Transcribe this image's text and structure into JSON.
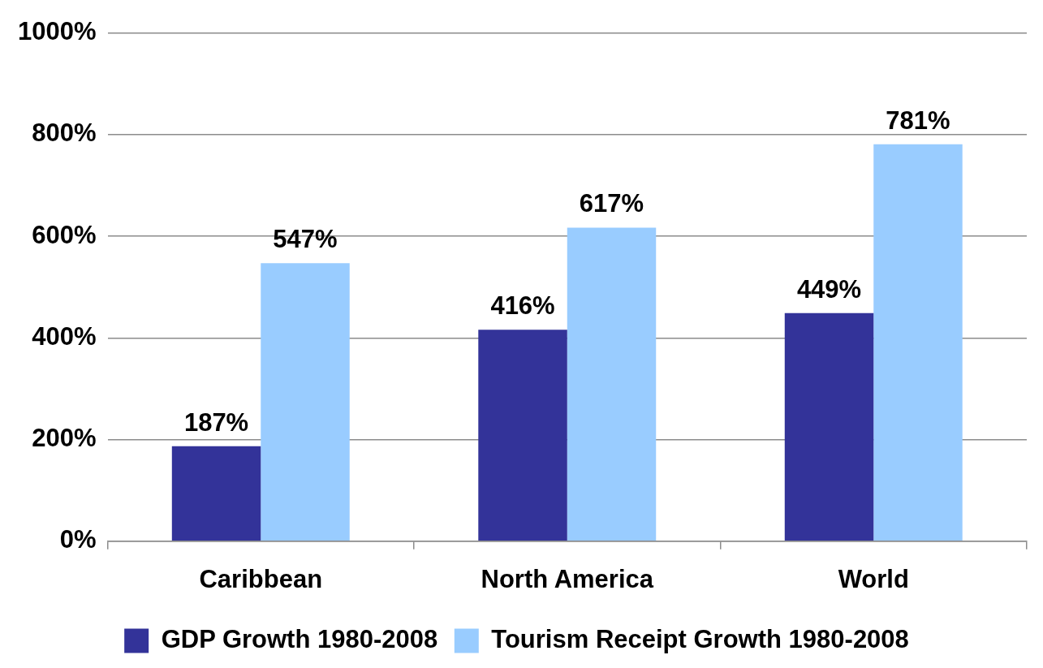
{
  "chart_data": {
    "type": "bar",
    "categories": [
      "Caribbean",
      "North America",
      "World"
    ],
    "series": [
      {
        "name": "GDP Growth 1980-2008",
        "color": "#333399",
        "values": [
          187,
          416,
          449
        ],
        "value_labels": [
          "187%",
          "416%",
          "449%"
        ]
      },
      {
        "name": "Tourism Receipt Growth 1980-2008",
        "color": "#99ccff",
        "values": [
          547,
          617,
          781
        ],
        "value_labels": [
          "547%",
          "617%",
          "781%"
        ]
      }
    ],
    "ylim": [
      0,
      1000
    ],
    "yticks": [
      {
        "value": 0,
        "label": "0%"
      },
      {
        "value": 200,
        "label": "200%"
      },
      {
        "value": 400,
        "label": "400%"
      },
      {
        "value": 600,
        "label": "600%"
      },
      {
        "value": 800,
        "label": "800%"
      },
      {
        "value": 1000,
        "label": "1000%"
      }
    ],
    "grid": "y",
    "legend": "bottom"
  }
}
